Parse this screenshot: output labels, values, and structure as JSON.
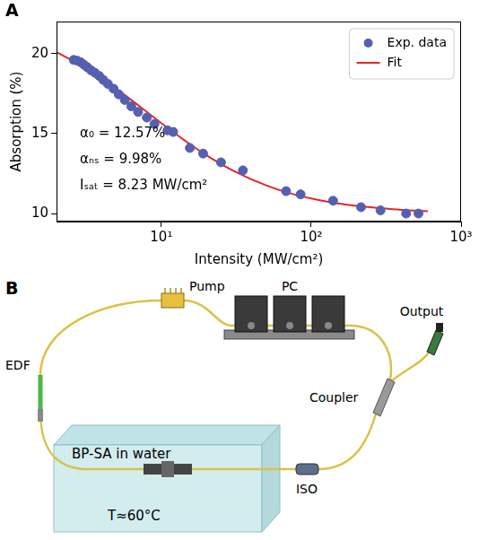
{
  "panel_labels": [
    "A",
    "B"
  ],
  "chart_data": {
    "type": "scatter",
    "x_label": "Intensity (MW/cm²)",
    "y_label": "Absorption (%)",
    "log": "x",
    "grid": false,
    "legend": "upper right",
    "xlim": [
      2,
      1000
    ],
    "xticks": [
      {
        "value": 10,
        "label": "10¹"
      },
      {
        "value": 100,
        "label": "10²"
      },
      {
        "value": 1000,
        "label": "10³"
      }
    ],
    "ylim": [
      9.5,
      22
    ],
    "yticks": [
      10,
      15,
      20
    ],
    "annotations": [
      "α₀ = 12.57%",
      "αₙₛ = 9.98%",
      "Iₛₐₜ = 8.23 MW/cm²"
    ],
    "series": [
      {
        "name": "Exp. data",
        "type": "scatter",
        "marker": "circle",
        "color": "#5560b0",
        "x": [
          2.6,
          2.75,
          2.9,
          3.05,
          3.2,
          3.4,
          3.6,
          3.85,
          4.1,
          4.4,
          4.8,
          5.2,
          5.7,
          6.3,
          7.0,
          8.0,
          9.0,
          11.0,
          12.0,
          15.5,
          19,
          25,
          35,
          68,
          85,
          140,
          215,
          290,
          430,
          520
        ],
        "values": [
          19.6,
          19.55,
          19.45,
          19.3,
          19.15,
          18.95,
          18.8,
          18.6,
          18.35,
          18.1,
          17.8,
          17.45,
          17.1,
          16.7,
          16.35,
          16.0,
          15.6,
          15.2,
          15.1,
          14.1,
          13.75,
          13.2,
          12.7,
          11.4,
          11.2,
          10.8,
          10.4,
          10.2,
          10.0,
          10.0
        ]
      },
      {
        "name": "Fit",
        "type": "line",
        "line_style": "solid",
        "color": "#e4262a",
        "x": [
          2,
          3,
          4,
          5,
          7,
          10,
          15,
          20,
          30,
          50,
          70,
          100,
          150,
          200,
          300,
          400,
          600
        ],
        "values": [
          20.09,
          19.19,
          18.44,
          17.8,
          16.77,
          15.65,
          14.43,
          13.64,
          12.69,
          11.76,
          11.3,
          10.94,
          10.63,
          10.48,
          10.32,
          10.23,
          10.15
        ]
      }
    ]
  },
  "diagram": {
    "labels": {
      "pump": "Pump",
      "pc": "PC",
      "output": "Output",
      "edf": "EDF",
      "sa": "BP-SA in water",
      "temperature": "T≈60°C",
      "coupler": "Coupler",
      "iso": "ISO"
    }
  }
}
